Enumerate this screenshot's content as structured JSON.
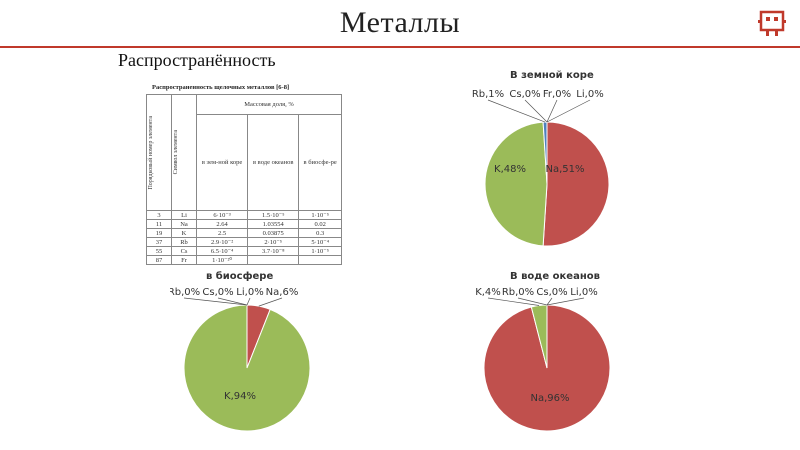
{
  "slide": {
    "title": "Металлы",
    "subtitle": "Распространённость"
  },
  "table": {
    "caption": "Распространенность щелочных металлов [6-8]",
    "headers": {
      "order_number": "Порядковый номер элемента",
      "symbol": "Символ элемента",
      "mass_fraction": "Массовая доля, %",
      "crust": "в зем-ной коре",
      "ocean": "в воде океанов",
      "biosphere": "в биосфе-ре"
    },
    "rows": [
      {
        "n": "3",
        "sym": "Li",
        "crust": "6·10⁻³",
        "ocean": "1.5·10⁻⁵",
        "bio": "1·10⁻⁵"
      },
      {
        "n": "11",
        "sym": "Na",
        "crust": "2.64",
        "ocean": "1.03554",
        "bio": "0.02"
      },
      {
        "n": "19",
        "sym": "K",
        "crust": "2.5",
        "ocean": "0.03875",
        "bio": "0.3"
      },
      {
        "n": "37",
        "sym": "Rb",
        "crust": "2.9·10⁻²",
        "ocean": "2·10⁻⁵",
        "bio": "5·10⁻⁴"
      },
      {
        "n": "55",
        "sym": "Cs",
        "crust": "6.5·10⁻⁴",
        "ocean": "3.7·10⁻⁸",
        "bio": "1·10⁻⁵"
      },
      {
        "n": "87",
        "sym": "Fr",
        "crust": "1·10⁻²⁰",
        "ocean": "",
        "bio": ""
      }
    ]
  },
  "colors": {
    "Na": "#c0504d",
    "K": "#9bbb59",
    "Rb": "#4f81bd",
    "accent": "#c0392b"
  },
  "chart_data": [
    {
      "type": "pie",
      "title": "В земной коре",
      "slices": [
        {
          "name": "Na",
          "value": 51,
          "label": "Na,51%"
        },
        {
          "name": "K",
          "value": 48,
          "label": "K,48%"
        },
        {
          "name": "Rb",
          "value": 1,
          "label": "Rb,1%"
        },
        {
          "name": "Cs",
          "value": 0,
          "label": "Cs,0%"
        },
        {
          "name": "Fr",
          "value": 0,
          "label": "Fr,0%"
        },
        {
          "name": "Li",
          "value": 0,
          "label": "Li,0%"
        }
      ]
    },
    {
      "type": "pie",
      "title": "в биосфере",
      "slices": [
        {
          "name": "Na",
          "value": 6,
          "label": "Na,6%"
        },
        {
          "name": "K",
          "value": 94,
          "label": "K,94%"
        },
        {
          "name": "Rb",
          "value": 0,
          "label": "Rb,0%"
        },
        {
          "name": "Cs",
          "value": 0,
          "label": "Cs,0%"
        },
        {
          "name": "Li",
          "value": 0,
          "label": "Li,0%"
        }
      ]
    },
    {
      "type": "pie",
      "title": "В воде океанов",
      "slices": [
        {
          "name": "Na",
          "value": 96,
          "label": "Na,96%"
        },
        {
          "name": "K",
          "value": 4,
          "label": "K,4%"
        },
        {
          "name": "Rb",
          "value": 0,
          "label": "Rb,0%"
        },
        {
          "name": "Cs",
          "value": 0,
          "label": "Cs,0%"
        },
        {
          "name": "Li",
          "value": 0,
          "label": "Li,0%"
        }
      ]
    }
  ]
}
